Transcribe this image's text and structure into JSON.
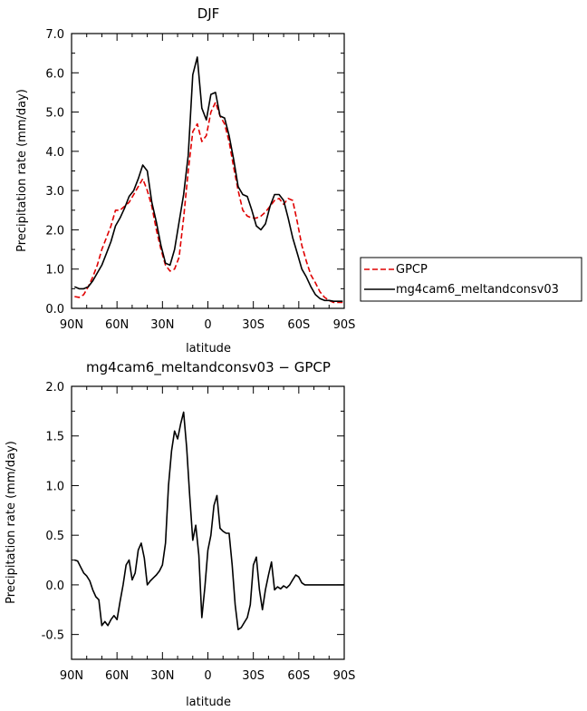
{
  "chart_data": [
    {
      "type": "line",
      "title": "DJF",
      "xlabel": "latitude",
      "ylabel": "Precipitation rate (mm/day)",
      "xlim": [
        -90,
        90
      ],
      "ylim": [
        0,
        7
      ],
      "x_ticks": [
        -90,
        -60,
        -30,
        0,
        30,
        60,
        90
      ],
      "x_tick_labels": [
        "90N",
        "60N",
        "30N",
        "0",
        "30S",
        "60S",
        "90S"
      ],
      "y_ticks": [
        0,
        1,
        2,
        3,
        4,
        5,
        6,
        7
      ],
      "y_tick_labels": [
        "0.0",
        "1.0",
        "2.0",
        "3.0",
        "4.0",
        "5.0",
        "6.0",
        "7.0"
      ],
      "legend_position": "right",
      "series": [
        {
          "name": "GPCP",
          "color": "#e00000",
          "dash": "dashed",
          "x": [
            -88,
            -85,
            -82,
            -79,
            -76,
            -73,
            -70,
            -67,
            -64,
            -61,
            -58,
            -55,
            -52,
            -49,
            -46,
            -43,
            -40,
            -37,
            -34,
            -31,
            -28,
            -25,
            -22,
            -19,
            -16,
            -13,
            -10,
            -7,
            -4,
            -1,
            2,
            5,
            8,
            11,
            14,
            17,
            20,
            23,
            26,
            29,
            32,
            35,
            38,
            41,
            44,
            47,
            50,
            53,
            56,
            59,
            62,
            65,
            68,
            71,
            74,
            77,
            80,
            83,
            86,
            89
          ],
          "y": [
            0.3,
            0.28,
            0.35,
            0.55,
            0.8,
            1.1,
            1.5,
            1.8,
            2.1,
            2.5,
            2.5,
            2.6,
            2.7,
            2.9,
            3.1,
            3.3,
            3.0,
            2.6,
            2.0,
            1.5,
            1.1,
            0.95,
            1.0,
            1.3,
            2.3,
            3.5,
            4.5,
            4.7,
            4.25,
            4.4,
            5.0,
            5.25,
            4.9,
            4.7,
            4.25,
            3.6,
            3.0,
            2.5,
            2.35,
            2.3,
            2.3,
            2.35,
            2.45,
            2.6,
            2.75,
            2.8,
            2.65,
            2.8,
            2.75,
            2.2,
            1.6,
            1.2,
            0.85,
            0.65,
            0.42,
            0.28,
            0.2,
            0.15,
            0.15,
            0.15
          ]
        },
        {
          "name": "mg4cam6_meltandconsv03",
          "color": "#000000",
          "dash": "solid",
          "x": [
            -88,
            -85,
            -82,
            -79,
            -76,
            -73,
            -70,
            -67,
            -64,
            -61,
            -58,
            -55,
            -52,
            -49,
            -46,
            -43,
            -40,
            -37,
            -34,
            -31,
            -28,
            -25,
            -22,
            -19,
            -16,
            -13,
            -10,
            -7,
            -4,
            -1,
            2,
            5,
            8,
            11,
            14,
            17,
            20,
            23,
            26,
            29,
            32,
            35,
            38,
            41,
            44,
            47,
            50,
            53,
            56,
            59,
            62,
            65,
            68,
            71,
            74,
            77,
            80,
            83,
            86,
            89
          ],
          "y": [
            0.55,
            0.5,
            0.5,
            0.55,
            0.7,
            0.9,
            1.1,
            1.4,
            1.7,
            2.1,
            2.3,
            2.55,
            2.85,
            3.0,
            3.3,
            3.65,
            3.5,
            2.7,
            2.2,
            1.6,
            1.15,
            1.1,
            1.5,
            2.2,
            2.9,
            3.9,
            5.95,
            6.4,
            5.1,
            4.8,
            5.45,
            5.5,
            4.9,
            4.85,
            4.4,
            3.8,
            3.1,
            2.9,
            2.85,
            2.5,
            2.1,
            2.0,
            2.15,
            2.6,
            2.9,
            2.9,
            2.75,
            2.3,
            1.8,
            1.4,
            1.0,
            0.8,
            0.55,
            0.35,
            0.25,
            0.2,
            0.2,
            0.18,
            0.18,
            0.18
          ]
        }
      ]
    },
    {
      "type": "line",
      "title": "mg4cam6_meltandconsv03 − GPCP",
      "xlabel": "latitude",
      "ylabel": "Precipitation rate (mm/day)",
      "xlim": [
        -90,
        90
      ],
      "ylim": [
        -0.75,
        2.0
      ],
      "x_ticks": [
        -90,
        -60,
        -30,
        0,
        30,
        60,
        90
      ],
      "x_tick_labels": [
        "90N",
        "60N",
        "30N",
        "0",
        "30S",
        "60S",
        "90S"
      ],
      "y_ticks": [
        -0.5,
        0,
        0.5,
        1.0,
        1.5,
        2.0
      ],
      "y_tick_labels": [
        "-0.5",
        "0.0",
        "0.5",
        "1.0",
        "1.5",
        "2.0"
      ],
      "series": [
        {
          "color": "#000000",
          "dash": "solid",
          "x": [
            -88,
            -86,
            -84,
            -82,
            -80,
            -78,
            -76,
            -74,
            -72,
            -70,
            -68,
            -66,
            -64,
            -62,
            -60,
            -58,
            -56,
            -54,
            -52,
            -50,
            -48,
            -46,
            -44,
            -42,
            -40,
            -38,
            -36,
            -34,
            -32,
            -30,
            -28,
            -26,
            -24,
            -22,
            -20,
            -18,
            -16,
            -14,
            -12,
            -10,
            -8,
            -6,
            -4,
            -2,
            0,
            2,
            4,
            6,
            8,
            10,
            12,
            14,
            16,
            18,
            20,
            22,
            24,
            26,
            28,
            30,
            32,
            34,
            36,
            38,
            40,
            42,
            44,
            46,
            48,
            50,
            52,
            54,
            56,
            58,
            60,
            62,
            64,
            66,
            68,
            70,
            72,
            74,
            76,
            78,
            80,
            82,
            84,
            86,
            88,
            90
          ],
          "y": [
            0.25,
            0.24,
            0.18,
            0.12,
            0.09,
            0.04,
            -0.05,
            -0.12,
            -0.15,
            -0.41,
            -0.37,
            -0.41,
            -0.35,
            -0.31,
            -0.35,
            -0.17,
            0.0,
            0.2,
            0.25,
            0.05,
            0.12,
            0.35,
            0.42,
            0.27,
            0.0,
            0.04,
            0.07,
            0.1,
            0.14,
            0.2,
            0.42,
            1.0,
            1.35,
            1.55,
            1.47,
            1.62,
            1.74,
            1.38,
            0.9,
            0.45,
            0.6,
            0.3,
            -0.33,
            -0.02,
            0.35,
            0.5,
            0.8,
            0.9,
            0.57,
            0.54,
            0.52,
            0.52,
            0.2,
            -0.2,
            -0.45,
            -0.43,
            -0.38,
            -0.33,
            -0.2,
            0.2,
            0.28,
            -0.05,
            -0.25,
            -0.05,
            0.1,
            0.23,
            -0.05,
            -0.02,
            -0.04,
            -0.01,
            -0.03,
            0.0,
            0.05,
            0.1,
            0.08,
            0.02,
            0.0,
            0.0,
            0.0,
            0.0,
            0.0,
            0.0,
            0.0,
            0.0,
            0.0,
            0.0,
            0.0,
            0.0,
            0.0,
            0.0
          ]
        }
      ]
    }
  ]
}
